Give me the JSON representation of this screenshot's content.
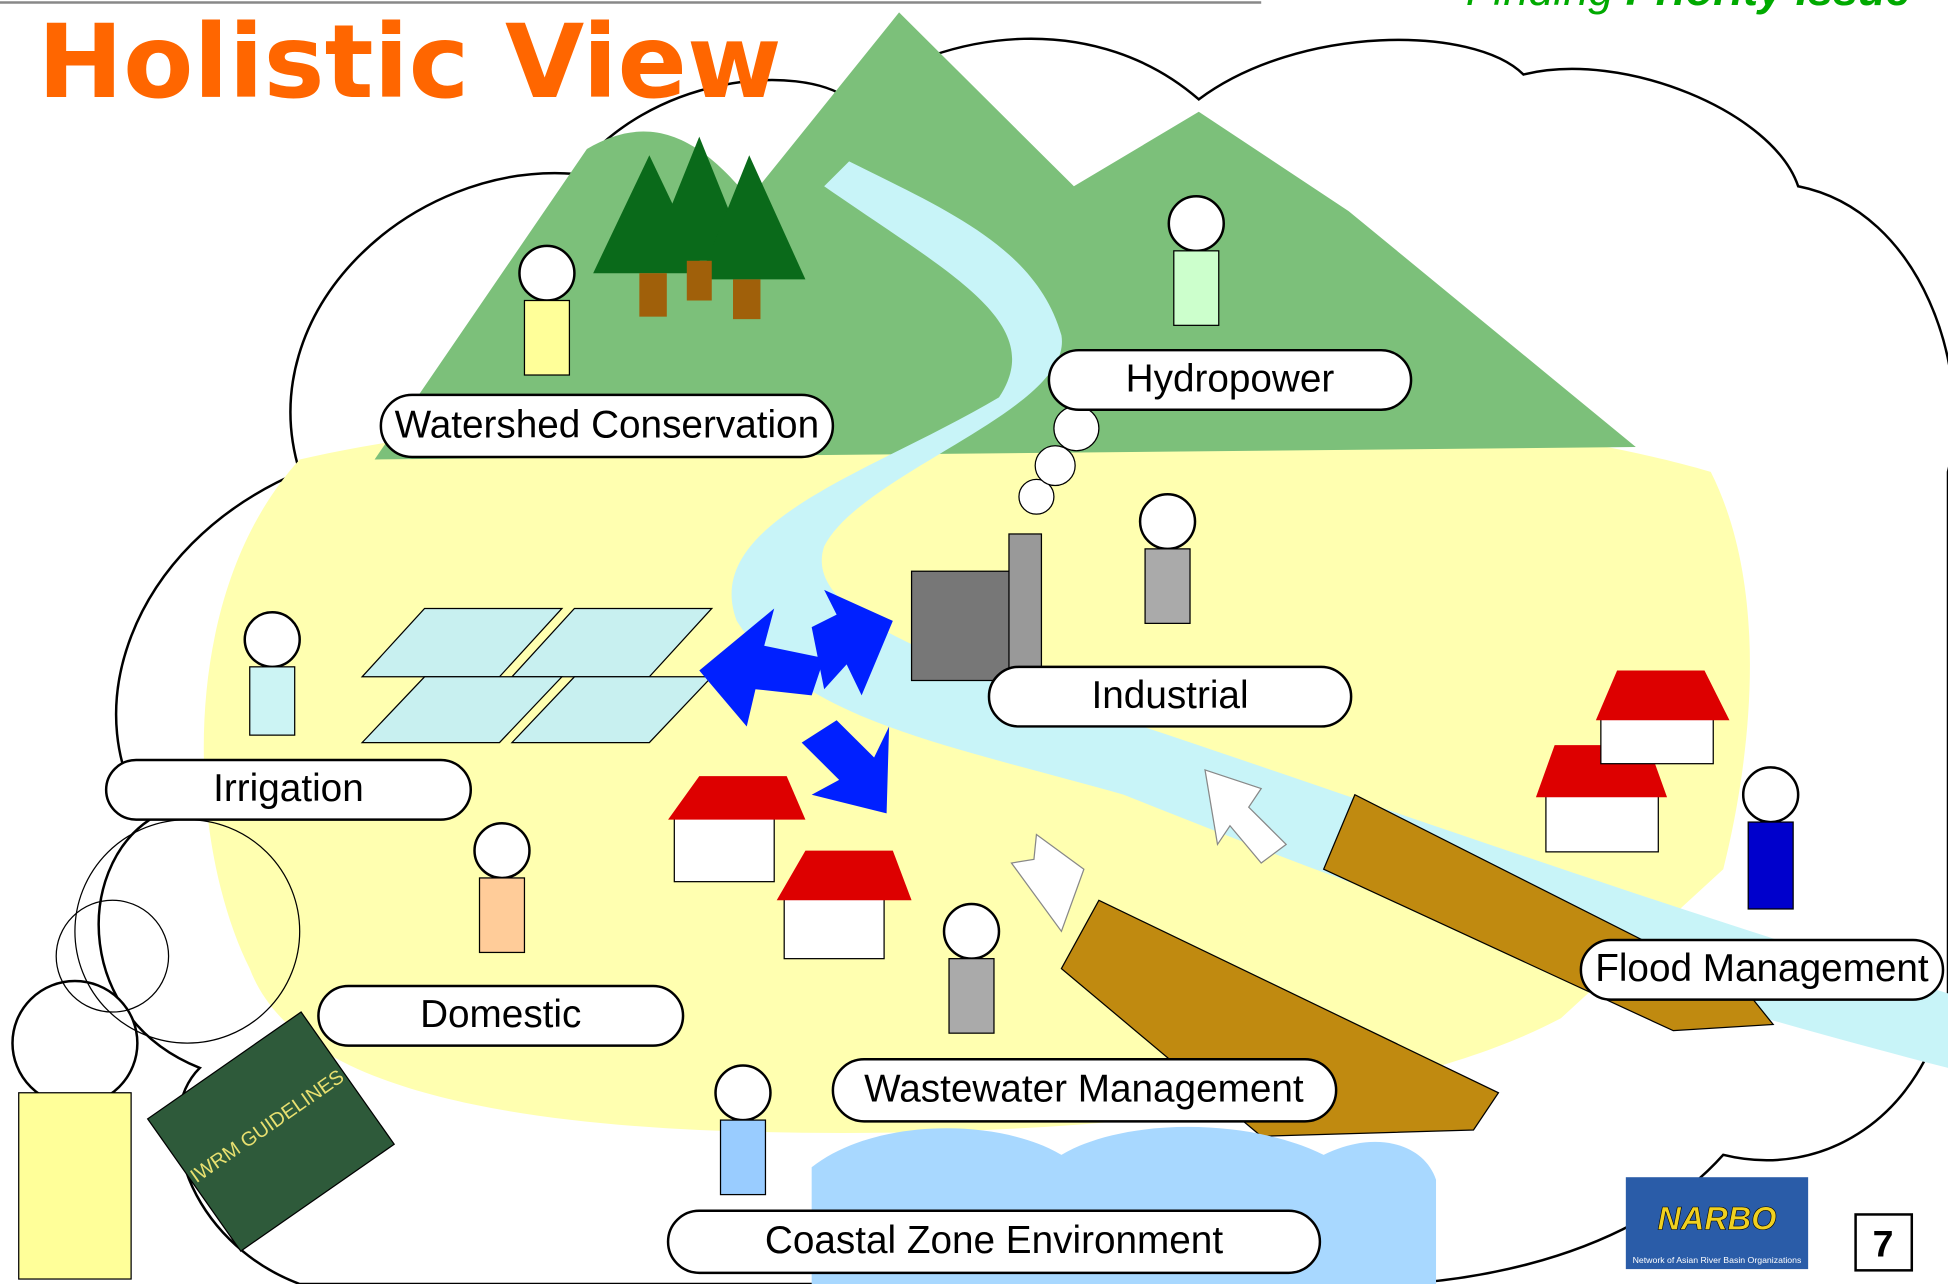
{
  "header": {
    "title": "Holistic View",
    "subtitle_prefix": "Finding",
    "subtitle_emphasis": "Priority Issue"
  },
  "sectors": [
    "Watershed Conservation",
    "Hydropower",
    "Industrial",
    "Irrigation",
    "Domestic",
    "Wastewater Management",
    "Flood Management",
    "Coastal Zone Environment"
  ],
  "book": {
    "title": "IWRM GUIDELINES"
  },
  "logo": {
    "name": "NARBO",
    "caption": "Network of Asian River Basin Organizations"
  },
  "page_number": "7"
}
